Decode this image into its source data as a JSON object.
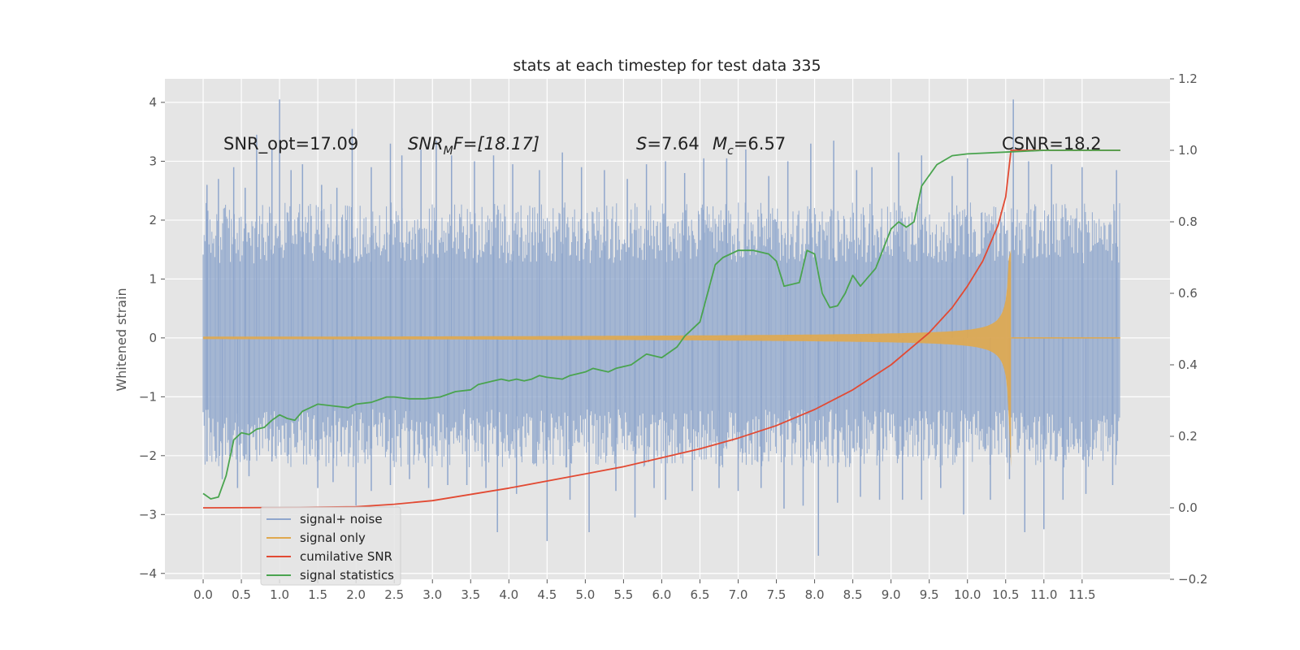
{
  "chart_data": {
    "type": "line",
    "title": "stats at each timestep for test data 335",
    "ylabel": "Whitened strain",
    "xlabel": "",
    "xlim": [
      -0.5,
      12.65
    ],
    "ylim": [
      -4.1,
      4.4
    ],
    "y2lim": [
      -0.2,
      1.2
    ],
    "x_ticks": [
      "0.0",
      "0.5",
      "1.0",
      "1.5",
      "2.0",
      "2.5",
      "3.0",
      "3.5",
      "4.0",
      "4.5",
      "5.0",
      "5.5",
      "6.0",
      "6.5",
      "7.0",
      "7.5",
      "8.0",
      "8.5",
      "9.0",
      "9.5",
      "10.0",
      "10.5",
      "11.0",
      "11.5"
    ],
    "y_ticks": [
      "4",
      "3",
      "2",
      "1",
      "0",
      "−1",
      "−2",
      "−3",
      "−4"
    ],
    "y2_ticks": [
      "1.2",
      "1.0",
      "0.8",
      "0.6",
      "0.4",
      "0.2",
      "0.0",
      "−0.2"
    ],
    "grid": true,
    "legend_position": "lower-left",
    "annotations": {
      "snr_opt": "SNR_opt=17.09",
      "snr_mf_base": "SNR",
      "snr_mf_sub": "M",
      "snr_mf_rest": "F=[18.17]",
      "s_label": "S",
      "s_value": "=7.64",
      "mc_base": "M",
      "mc_sub": "c",
      "mc_value": "=6.57",
      "csnr": "CSNR=18.2"
    },
    "series": [
      {
        "name": "signal+ noise",
        "color": "#8fa6cc",
        "x_range": [
          0.0,
          12.0
        ],
        "band_upper": 2.3,
        "band_lower": -2.2,
        "spikes": [
          [
            0.05,
            2.6
          ],
          [
            0.2,
            2.7
          ],
          [
            0.4,
            2.9
          ],
          [
            0.55,
            2.55
          ],
          [
            0.7,
            3.45
          ],
          [
            0.9,
            3.2
          ],
          [
            1.0,
            4.05
          ],
          [
            1.15,
            2.85
          ],
          [
            1.3,
            2.95
          ],
          [
            1.55,
            2.6
          ],
          [
            1.75,
            2.55
          ],
          [
            1.95,
            3.55
          ],
          [
            2.2,
            2.9
          ],
          [
            2.45,
            3.3
          ],
          [
            2.6,
            3.1
          ],
          [
            2.85,
            3.2
          ],
          [
            3.05,
            3.35
          ],
          [
            3.25,
            3.1
          ],
          [
            3.55,
            3.0
          ],
          [
            3.8,
            3.1
          ],
          [
            4.05,
            2.95
          ],
          [
            4.4,
            2.85
          ],
          [
            4.7,
            3.15
          ],
          [
            4.95,
            2.9
          ],
          [
            5.25,
            2.85
          ],
          [
            5.55,
            2.7
          ],
          [
            5.8,
            2.95
          ],
          [
            6.05,
            3.0
          ],
          [
            6.3,
            2.8
          ],
          [
            6.55,
            3.05
          ],
          [
            6.85,
            3.05
          ],
          [
            7.1,
            3.2
          ],
          [
            7.4,
            2.75
          ],
          [
            7.65,
            3.0
          ],
          [
            7.95,
            3.3
          ],
          [
            8.25,
            3.35
          ],
          [
            8.55,
            2.85
          ],
          [
            8.75,
            2.9
          ],
          [
            9.1,
            3.15
          ],
          [
            9.4,
            3.1
          ],
          [
            9.8,
            2.75
          ],
          [
            10.0,
            3.05
          ],
          [
            10.6,
            4.05
          ],
          [
            10.8,
            3.0
          ],
          [
            11.1,
            2.95
          ],
          [
            11.5,
            2.9
          ],
          [
            11.95,
            2.85
          ]
        ],
        "neg_spikes": [
          [
            0.05,
            -2.1
          ],
          [
            0.25,
            -2.4
          ],
          [
            0.45,
            -2.55
          ],
          [
            0.6,
            -2.35
          ],
          [
            0.9,
            -2.1
          ],
          [
            1.5,
            -2.55
          ],
          [
            1.7,
            -2.45
          ],
          [
            2.0,
            -2.85
          ],
          [
            2.2,
            -2.6
          ],
          [
            2.45,
            -2.5
          ],
          [
            2.7,
            -2.4
          ],
          [
            2.95,
            -2.55
          ],
          [
            3.2,
            -2.5
          ],
          [
            3.45,
            -2.5
          ],
          [
            3.7,
            -2.55
          ],
          [
            3.85,
            -3.3
          ],
          [
            4.1,
            -2.65
          ],
          [
            4.5,
            -3.45
          ],
          [
            4.8,
            -2.75
          ],
          [
            5.05,
            -3.3
          ],
          [
            5.4,
            -2.6
          ],
          [
            5.65,
            -3.05
          ],
          [
            5.9,
            -2.55
          ],
          [
            6.05,
            -2.75
          ],
          [
            6.4,
            -2.6
          ],
          [
            6.75,
            -2.55
          ],
          [
            7.0,
            -2.6
          ],
          [
            7.3,
            -2.55
          ],
          [
            7.6,
            -2.9
          ],
          [
            7.85,
            -2.85
          ],
          [
            8.05,
            -3.7
          ],
          [
            8.3,
            -2.8
          ],
          [
            8.6,
            -2.7
          ],
          [
            8.85,
            -2.75
          ],
          [
            9.15,
            -2.75
          ],
          [
            9.4,
            -2.75
          ],
          [
            9.65,
            -2.55
          ],
          [
            9.95,
            -3.0
          ],
          [
            10.3,
            -2.75
          ],
          [
            10.55,
            -2.4
          ],
          [
            10.75,
            -3.3
          ],
          [
            11.0,
            -3.25
          ],
          [
            11.25,
            -2.75
          ],
          [
            11.55,
            -2.65
          ],
          [
            11.9,
            -2.5
          ]
        ]
      },
      {
        "name": "signal only",
        "color": "#e0a84e",
        "chirp_start": 0.0,
        "chirp_end": 10.57,
        "amp_start": 0.02,
        "amp_end": 1.5,
        "peak_neg": -2.2
      },
      {
        "name": "cumilative SNR",
        "color": "#e24a33",
        "axis": "right",
        "x": [
          0.0,
          1.0,
          2.0,
          2.5,
          3.0,
          4.0,
          5.0,
          5.5,
          6.0,
          6.5,
          7.0,
          7.5,
          8.0,
          8.5,
          9.0,
          9.5,
          9.8,
          10.0,
          10.2,
          10.4,
          10.5,
          10.57,
          12.0
        ],
        "y": [
          0.0,
          0.001,
          0.003,
          0.01,
          0.02,
          0.055,
          0.095,
          0.115,
          0.14,
          0.165,
          0.195,
          0.23,
          0.275,
          0.33,
          0.4,
          0.49,
          0.56,
          0.62,
          0.69,
          0.79,
          0.87,
          1.0,
          1.0
        ]
      },
      {
        "name": "signal statistics",
        "color": "#4aa44f",
        "axis": "right",
        "x": [
          0.0,
          0.1,
          0.2,
          0.3,
          0.4,
          0.5,
          0.6,
          0.7,
          0.8,
          0.9,
          1.0,
          1.1,
          1.2,
          1.3,
          1.4,
          1.5,
          1.7,
          1.9,
          2.0,
          2.2,
          2.4,
          2.5,
          2.7,
          2.9,
          3.1,
          3.3,
          3.5,
          3.6,
          3.8,
          3.9,
          4.0,
          4.1,
          4.2,
          4.3,
          4.4,
          4.5,
          4.7,
          4.8,
          5.0,
          5.1,
          5.2,
          5.3,
          5.4,
          5.6,
          5.8,
          6.0,
          6.2,
          6.3,
          6.5,
          6.6,
          6.7,
          6.8,
          7.0,
          7.2,
          7.4,
          7.5,
          7.6,
          7.8,
          7.9,
          8.0,
          8.1,
          8.2,
          8.3,
          8.4,
          8.5,
          8.6,
          8.8,
          9.0,
          9.1,
          9.2,
          9.3,
          9.4,
          9.6,
          9.8,
          10.0,
          10.5,
          11.0,
          11.5,
          12.0
        ],
        "y": [
          0.04,
          0.025,
          0.03,
          0.09,
          0.19,
          0.21,
          0.205,
          0.22,
          0.225,
          0.245,
          0.26,
          0.25,
          0.245,
          0.27,
          0.28,
          0.29,
          0.285,
          0.28,
          0.29,
          0.295,
          0.31,
          0.31,
          0.305,
          0.305,
          0.31,
          0.325,
          0.33,
          0.345,
          0.355,
          0.36,
          0.355,
          0.36,
          0.355,
          0.36,
          0.37,
          0.365,
          0.36,
          0.37,
          0.38,
          0.39,
          0.385,
          0.38,
          0.39,
          0.4,
          0.43,
          0.42,
          0.45,
          0.48,
          0.52,
          0.6,
          0.68,
          0.7,
          0.72,
          0.72,
          0.71,
          0.69,
          0.62,
          0.63,
          0.72,
          0.71,
          0.6,
          0.56,
          0.565,
          0.6,
          0.65,
          0.62,
          0.67,
          0.78,
          0.8,
          0.785,
          0.8,
          0.9,
          0.96,
          0.985,
          0.99,
          0.995,
          1.0,
          1.0,
          1.0
        ]
      }
    ]
  }
}
